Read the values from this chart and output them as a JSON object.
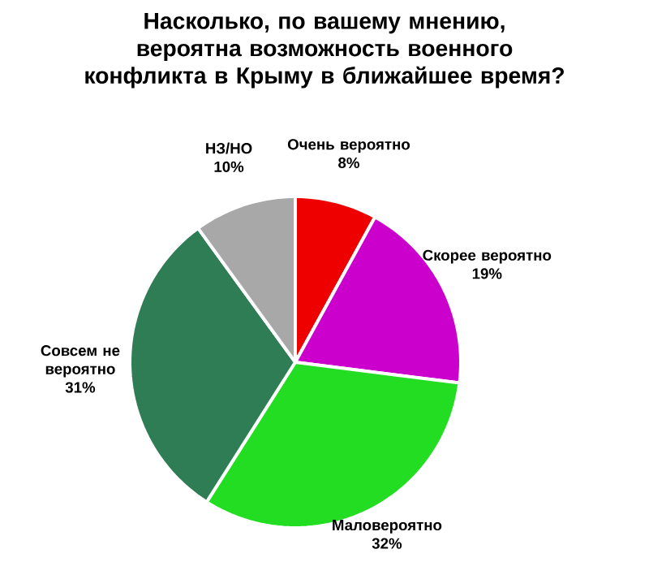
{
  "chart_data": {
    "type": "pie",
    "title": "Насколько, по вашему мнению, вероятна возможность военного конфликта в Крыму в ближайшее время?",
    "categories": [
      "Очень вероятно",
      "Скорее вероятно",
      "Маловероятно",
      "Совсем не вероятно",
      "НЗ/НО"
    ],
    "values": [
      8,
      19,
      32,
      31,
      10
    ],
    "value_labels": [
      "8%",
      "19%",
      "32%",
      "31%",
      "10%"
    ],
    "colors": [
      "#ee0000",
      "#cc00cc",
      "#22dd22",
      "#2e7d55",
      "#a8a8a8"
    ]
  }
}
